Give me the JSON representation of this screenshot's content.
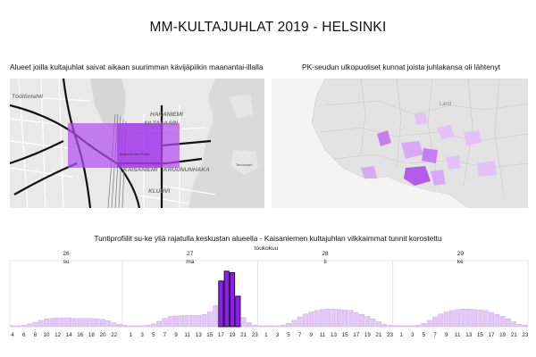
{
  "page": {
    "title": "MM-KULTAJUHLAT 2019 - HELSINKI",
    "map_left_title": "Alueet joilla kultajuhlat saivat aikaan suurimman kävijäpiikin maanantai-illalla",
    "map_right_title": "PK-seudun ulkopuoliset kunnat joista juhlakansa oli lähtenyt",
    "chart_title": "Tuntiprofiilit su-ke yliä rajatulla keskustan alueella - Kaisaniemen kultajuhlan vilkkaimmat tunnit korostettu"
  },
  "map_left": {
    "labels": [
      "Töölönlahti",
      "HAKANIEMI",
      "SILTASAARI",
      "KAISANIEMI",
      "KRUUNUNHAKA",
      "KLUUVI",
      "Kaisaniemen Puisto",
      "Tervasaari"
    ],
    "highlight_color": "#b44ff0"
  },
  "map_right": {
    "labels": [
      "Land"
    ],
    "highlight_color": "#c77ff0"
  },
  "chart_data": {
    "type": "bar",
    "title": "Tuntiprofiilit su-ke yliä rajatulla keskustan alueella - Kaisaniemen kultajuhlan vilkkaimmat tunnit korostettu",
    "month_label": "toukokuu",
    "days": [
      {
        "date": "26",
        "weekday": "su",
        "hours": [
          4,
          5,
          6,
          7,
          8,
          9,
          10,
          11,
          12,
          13,
          14,
          15,
          16,
          17,
          18,
          19,
          20,
          21,
          22,
          23
        ],
        "values": [
          0.2,
          0.2,
          0.3,
          0.6,
          0.9,
          1.3,
          1.6,
          1.7,
          1.8,
          1.8,
          1.8,
          1.7,
          1.7,
          1.7,
          1.7,
          1.6,
          1.5,
          1.2,
          0.8,
          0.5
        ]
      },
      {
        "date": "27",
        "weekday": "ma",
        "hours": [
          0,
          1,
          2,
          3,
          4,
          5,
          6,
          7,
          8,
          9,
          10,
          11,
          12,
          13,
          14,
          15,
          16,
          17,
          18,
          19,
          20,
          21,
          22,
          23
        ],
        "values": [
          0.3,
          0.2,
          0.2,
          0.2,
          0.3,
          0.6,
          1.1,
          1.7,
          2.1,
          2.2,
          2.3,
          2.3,
          2.3,
          2.3,
          2.5,
          3.0,
          4.3,
          9.3,
          11.3,
          11.0,
          6.2,
          1.9,
          0.8,
          0.3
        ]
      },
      {
        "date": "28",
        "weekday": "ti",
        "hours": [
          0,
          1,
          2,
          3,
          4,
          5,
          6,
          7,
          8,
          9,
          10,
          11,
          12,
          13,
          14,
          15,
          16,
          17,
          18,
          19,
          20,
          21,
          22,
          23
        ],
        "values": [
          0.2,
          0.2,
          0.2,
          0.2,
          0.3,
          0.7,
          1.3,
          2.0,
          2.6,
          3.0,
          3.3,
          3.5,
          3.6,
          3.6,
          3.5,
          3.4,
          3.3,
          2.9,
          2.5,
          2.1,
          1.6,
          1.0,
          0.5,
          0.3
        ]
      },
      {
        "date": "29",
        "weekday": "ke",
        "hours": [
          0,
          1,
          2,
          3,
          4,
          5,
          6,
          7,
          8,
          9,
          10,
          11,
          12,
          13,
          14,
          15,
          16,
          17,
          18,
          19,
          20,
          21,
          22,
          23
        ],
        "values": [
          0.2,
          0.2,
          0.2,
          0.2,
          0.3,
          0.7,
          1.3,
          2.0,
          2.6,
          3.0,
          3.3,
          3.5,
          3.6,
          3.6,
          3.5,
          3.4,
          3.3,
          2.9,
          2.5,
          2.1,
          1.6,
          1.0,
          0.5,
          0.3
        ]
      }
    ],
    "highlight": {
      "day": "27",
      "hours": [
        17,
        18,
        19,
        20
      ]
    },
    "tick_labels": [
      "4",
      "6",
      "8",
      "10",
      "12",
      "14",
      "16",
      "18",
      "20",
      "22",
      "1",
      "3",
      "5",
      "7",
      "9",
      "11",
      "13",
      "15",
      "17",
      "19",
      "21",
      "23",
      "1",
      "3",
      "5",
      "7",
      "9",
      "11",
      "13",
      "15",
      "17",
      "19",
      "21",
      "23",
      "1",
      "3",
      "5",
      "7",
      "9",
      "11",
      "13",
      "15",
      "17",
      "19",
      "21",
      "23"
    ],
    "ylim": [
      0,
      12
    ],
    "grid": false,
    "colors": {
      "normal": "#e3c8f5",
      "normal_edge": "#c9a2e8",
      "highlight": "#8e1df0",
      "highlight_edge": "#1a0030"
    }
  }
}
